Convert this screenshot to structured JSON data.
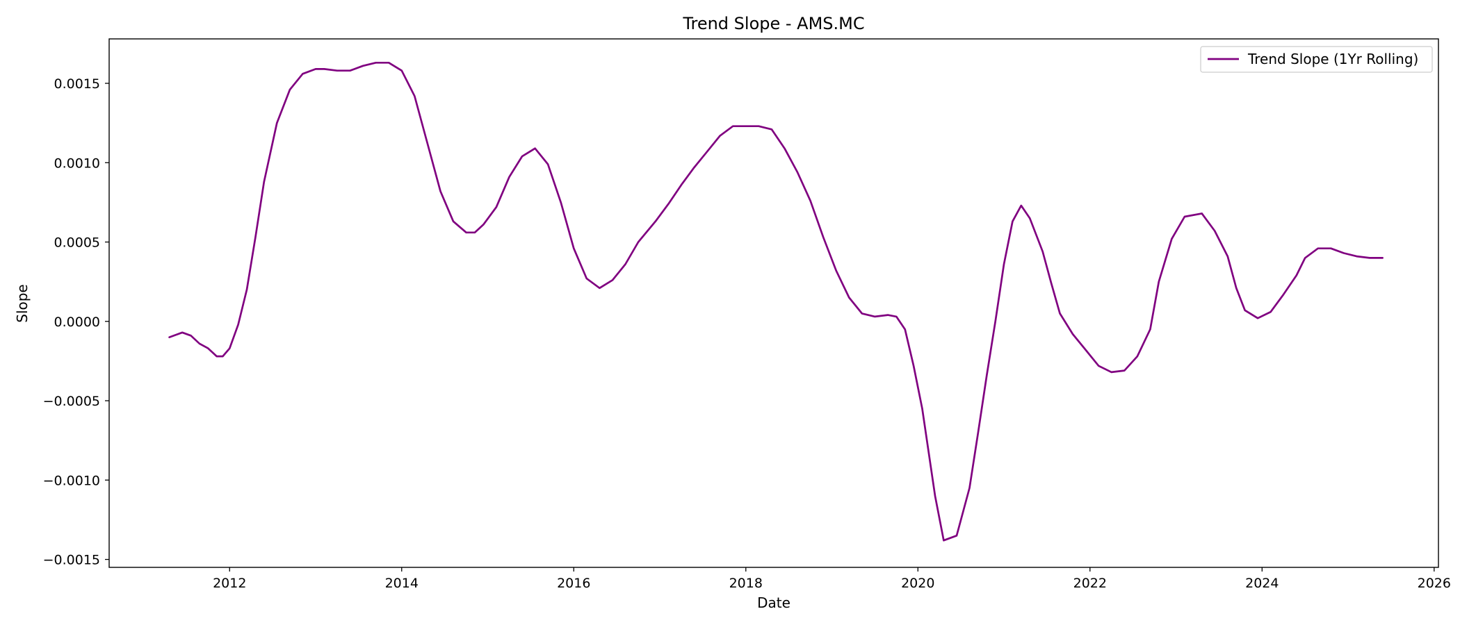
{
  "chart_data": {
    "type": "line",
    "title": "Trend Slope - AMS.MC",
    "xlabel": "Date",
    "ylabel": "Slope",
    "x_axis": "date (years)",
    "xlim": [
      2010.6,
      2026.05
    ],
    "ylim": [
      -0.00155,
      0.00178
    ],
    "xticks": [
      2012,
      2014,
      2016,
      2018,
      2020,
      2022,
      2024,
      2026
    ],
    "xtick_labels": [
      "2012",
      "2014",
      "2016",
      "2018",
      "2020",
      "2022",
      "2024",
      "2026"
    ],
    "yticks": [
      -0.0015,
      -0.001,
      -0.0005,
      0.0,
      0.0005,
      0.001,
      0.0015
    ],
    "ytick_labels": [
      "−0.0015",
      "−0.0010",
      "−0.0005",
      "0.0000",
      "0.0005",
      "0.0010",
      "0.0015"
    ],
    "grid": false,
    "legend": {
      "position": "top-right",
      "entries": [
        "Trend Slope (1Yr Rolling)"
      ]
    },
    "series": [
      {
        "name": "Trend Slope (1Yr Rolling)",
        "color": "#800080",
        "x": [
          2011.3,
          2011.45,
          2011.55,
          2011.65,
          2011.75,
          2011.85,
          2011.92,
          2012.0,
          2012.1,
          2012.2,
          2012.3,
          2012.4,
          2012.55,
          2012.7,
          2012.85,
          2013.0,
          2013.1,
          2013.25,
          2013.4,
          2013.55,
          2013.7,
          2013.85,
          2014.0,
          2014.15,
          2014.3,
          2014.45,
          2014.6,
          2014.75,
          2014.85,
          2014.95,
          2015.1,
          2015.25,
          2015.4,
          2015.55,
          2015.7,
          2015.85,
          2016.0,
          2016.15,
          2016.3,
          2016.45,
          2016.6,
          2016.75,
          2016.95,
          2017.1,
          2017.25,
          2017.4,
          2017.55,
          2017.7,
          2017.85,
          2018.0,
          2018.15,
          2018.3,
          2018.45,
          2018.6,
          2018.75,
          2018.9,
          2019.05,
          2019.2,
          2019.35,
          2019.5,
          2019.65,
          2019.75,
          2019.85,
          2019.95,
          2020.05,
          2020.2,
          2020.3,
          2020.45,
          2020.6,
          2020.7,
          2020.8,
          2020.9,
          2021.0,
          2021.1,
          2021.2,
          2021.3,
          2021.45,
          2021.55,
          2021.65,
          2021.8,
          2021.95,
          2022.1,
          2022.25,
          2022.4,
          2022.55,
          2022.7,
          2022.8,
          2022.95,
          2023.1,
          2023.3,
          2023.45,
          2023.6,
          2023.7,
          2023.8,
          2023.95,
          2024.1,
          2024.25,
          2024.4,
          2024.5,
          2024.65,
          2024.8,
          2024.95,
          2025.1,
          2025.25,
          2025.4
        ],
        "y": [
          -0.0001,
          -7e-05,
          -9e-05,
          -0.00014,
          -0.00017,
          -0.00022,
          -0.00022,
          -0.00017,
          -2e-05,
          0.0002,
          0.00053,
          0.00088,
          0.00125,
          0.00146,
          0.00156,
          0.00159,
          0.00159,
          0.00158,
          0.00158,
          0.00161,
          0.00163,
          0.00163,
          0.00158,
          0.00142,
          0.00112,
          0.00082,
          0.00063,
          0.00056,
          0.00056,
          0.00061,
          0.00072,
          0.00091,
          0.00104,
          0.00109,
          0.00099,
          0.00075,
          0.00046,
          0.00027,
          0.00021,
          0.00026,
          0.00036,
          0.0005,
          0.00063,
          0.00074,
          0.00086,
          0.00097,
          0.00107,
          0.00117,
          0.00123,
          0.00123,
          0.00123,
          0.00121,
          0.00109,
          0.00094,
          0.00076,
          0.00053,
          0.00032,
          0.00015,
          5e-05,
          3e-05,
          4e-05,
          3e-05,
          -5e-05,
          -0.00028,
          -0.00055,
          -0.0011,
          -0.00138,
          -0.00135,
          -0.00105,
          -0.0007,
          -0.00034,
          0.0,
          0.00036,
          0.00063,
          0.00073,
          0.00065,
          0.00044,
          0.00024,
          5e-05,
          -8e-05,
          -0.00018,
          -0.00028,
          -0.00032,
          -0.00031,
          -0.00022,
          -5e-05,
          0.00025,
          0.00052,
          0.00066,
          0.00068,
          0.00057,
          0.00041,
          0.00021,
          7e-05,
          2e-05,
          6e-05,
          0.00017,
          0.00029,
          0.0004,
          0.00046,
          0.00046,
          0.00043,
          0.00041,
          0.0004,
          0.0004
        ]
      }
    ]
  }
}
